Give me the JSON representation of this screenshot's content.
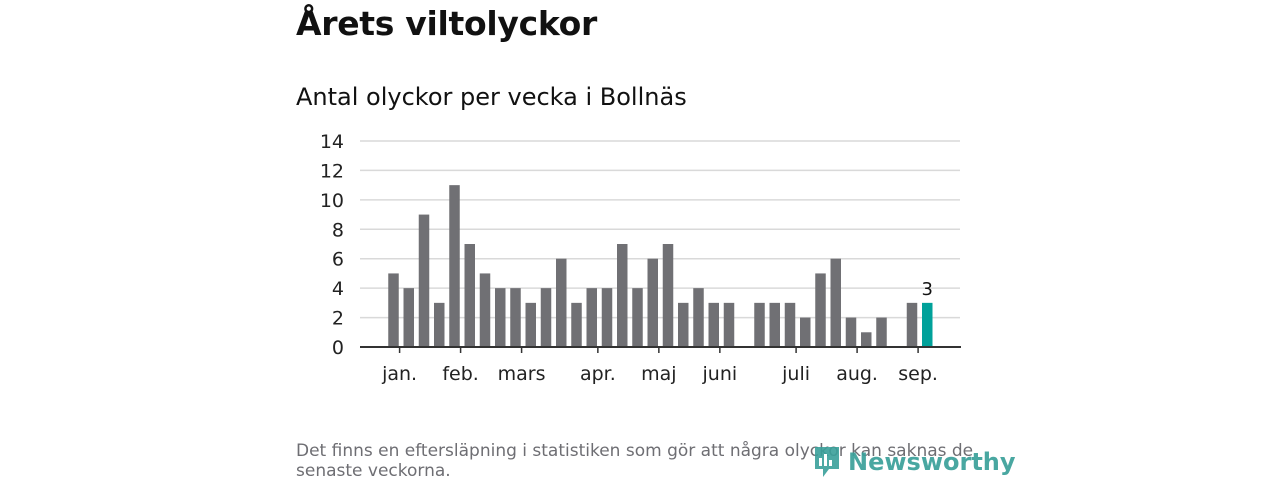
{
  "header": {
    "title": "Årets viltolyckor",
    "subtitle": "Antal olyckor per vecka i Bollnäs"
  },
  "footnote": "Det finns en eftersläpning i statistiken som gör att några olyckor kan saknas de senaste veckorna.",
  "brand": {
    "name": "Newsworthy",
    "icon": "newsworthy-logo-icon",
    "color": "#3aa09a"
  },
  "chart_data": {
    "type": "bar",
    "title": "Antal olyckor per vecka i Bollnäs",
    "xlabel": "",
    "ylabel": "",
    "ylim": [
      0,
      14
    ],
    "yticks": [
      0,
      2,
      4,
      6,
      8,
      10,
      12,
      14
    ],
    "grid": true,
    "x": [
      2,
      3,
      4,
      5,
      6,
      7,
      8,
      9,
      10,
      11,
      12,
      13,
      14,
      15,
      16,
      17,
      18,
      19,
      20,
      21,
      22,
      23,
      24,
      25,
      26,
      27,
      28,
      29,
      30,
      31,
      32,
      33,
      34,
      35,
      36,
      37
    ],
    "values": [
      5,
      4,
      9,
      3,
      11,
      7,
      5,
      4,
      4,
      3,
      4,
      6,
      3,
      4,
      4,
      7,
      4,
      6,
      7,
      3,
      4,
      3,
      3,
      0,
      3,
      3,
      3,
      2,
      5,
      6,
      2,
      1,
      2,
      0,
      3,
      3
    ],
    "month_labels": [
      {
        "label": "jan.",
        "week": 2.4
      },
      {
        "label": "feb.",
        "week": 6.4
      },
      {
        "label": "mars",
        "week": 10.4
      },
      {
        "label": "apr.",
        "week": 15.4
      },
      {
        "label": "maj",
        "week": 19.4
      },
      {
        "label": "juni",
        "week": 23.4
      },
      {
        "label": "juli",
        "week": 28.4
      },
      {
        "label": "aug.",
        "week": 32.4
      },
      {
        "label": "sep.",
        "week": 36.4
      }
    ],
    "highlight_last": {
      "value_label": "3",
      "color": "#00a19a"
    },
    "bar_color": "#707074",
    "grid_color": "#d9d9d9"
  }
}
